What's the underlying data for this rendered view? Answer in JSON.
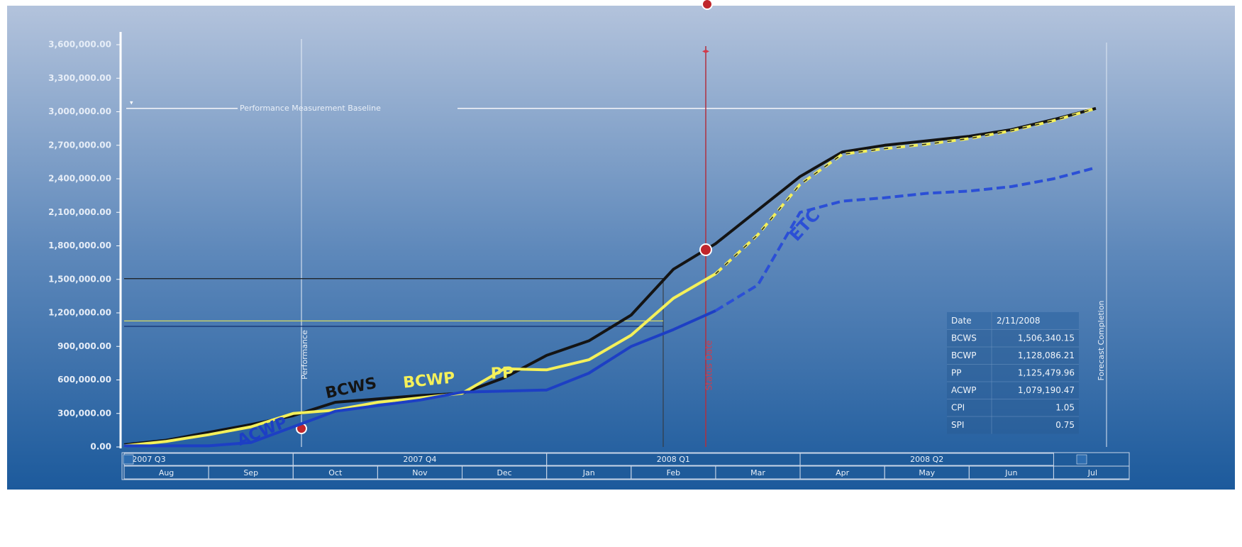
{
  "chart_data": {
    "type": "line",
    "categories": [
      "Aug",
      null,
      "Sep",
      null,
      "Oct",
      null,
      "Nov",
      null,
      "Dec",
      null,
      "Jan",
      null,
      "Feb",
      null,
      "Mar",
      null,
      "Apr",
      null,
      "May",
      null,
      "Jun",
      null,
      "Jul",
      null
    ],
    "quarters": [
      "2007 Q3",
      "2007 Q4",
      "2008 Q1",
      "2008 Q2"
    ],
    "series": [
      {
        "name": "BCWS",
        "color": "#141414",
        "dash": false,
        "values": [
          20000,
          60000,
          130000,
          200000,
          280000,
          400000,
          430000,
          460000,
          480000,
          620000,
          820000,
          950000,
          1180000,
          1590000,
          1820000,
          2120000,
          2420000,
          2640000,
          2700000,
          2740000,
          2780000,
          2840000,
          2930000,
          3030000
        ]
      },
      {
        "name": "BCWP",
        "color": "#f4f05a",
        "dash": false,
        "values": [
          10000,
          50000,
          110000,
          180000,
          300000,
          330000,
          400000,
          440000,
          480000,
          700000,
          690000,
          780000,
          1000000,
          1330000,
          1550000,
          null,
          null,
          null,
          null,
          null,
          null,
          null,
          null,
          null
        ]
      },
      {
        "name": "PP",
        "color": "#f4f05a",
        "dash": true,
        "values": [
          null,
          null,
          null,
          null,
          null,
          null,
          null,
          null,
          null,
          null,
          null,
          null,
          null,
          null,
          1550000,
          1900000,
          2350000,
          2620000,
          2670000,
          2710000,
          2760000,
          2830000,
          2920000,
          3030000
        ]
      },
      {
        "name": "ACWP",
        "color": "#1d3fc4",
        "dash": false,
        "values": [
          10000,
          10000,
          10000,
          40000,
          180000,
          320000,
          370000,
          420000,
          490000,
          500000,
          510000,
          660000,
          900000,
          1050000,
          1220000,
          null,
          null,
          null,
          null,
          null,
          null,
          null,
          null,
          null
        ]
      },
      {
        "name": "ETC",
        "color": "#2b4fd6",
        "dash": true,
        "values": [
          null,
          null,
          null,
          null,
          null,
          null,
          null,
          null,
          null,
          null,
          null,
          null,
          null,
          null,
          1220000,
          1450000,
          2100000,
          2200000,
          2230000,
          2270000,
          2290000,
          2330000,
          2400000,
          2500000
        ]
      }
    ],
    "ylim": [
      0,
      3600000
    ],
    "yticks": [
      {
        "value": 0,
        "label": "0.00"
      },
      {
        "value": 300000,
        "label": "300,000.00"
      },
      {
        "value": 600000,
        "label": "600,000.00"
      },
      {
        "value": 900000,
        "label": "900,000.00"
      },
      {
        "value": 1200000,
        "label": "1,200,000.00"
      },
      {
        "value": 1500000,
        "label": "1,500,000.00"
      },
      {
        "value": 1800000,
        "label": "1,800,000.00"
      },
      {
        "value": 2100000,
        "label": "2,100,000.00"
      },
      {
        "value": 2400000,
        "label": "2,400,000.00"
      },
      {
        "value": 2700000,
        "label": "2,700,000.00"
      },
      {
        "value": 3000000,
        "label": "3,000,000.00"
      },
      {
        "value": 3300000,
        "label": "3,300,000.00"
      },
      {
        "value": 3600000,
        "label": "3,600,000.00"
      }
    ],
    "baseline": {
      "label": "Performance Measurement Baseline",
      "value": 3030000
    },
    "markers": {
      "performance": "Performance",
      "status": "Status Date",
      "forecast": "Forecast Completion"
    },
    "readout": {
      "date_label": "Date",
      "date": "2/11/2008",
      "rows": [
        {
          "name": "BCWS",
          "value": 1506340.15,
          "label": "1,506,340.15"
        },
        {
          "name": "BCWP",
          "value": 1128086.21,
          "label": "1,128,086.21"
        },
        {
          "name": "PP",
          "value": 1125479.96,
          "label": "1,125,479.96"
        },
        {
          "name": "ACWP",
          "value": 1079190.47,
          "label": "1,079,190.47"
        },
        {
          "name": "CPI",
          "value": 1.05
        },
        {
          "name": "SPI",
          "value": 0.75
        }
      ]
    }
  }
}
